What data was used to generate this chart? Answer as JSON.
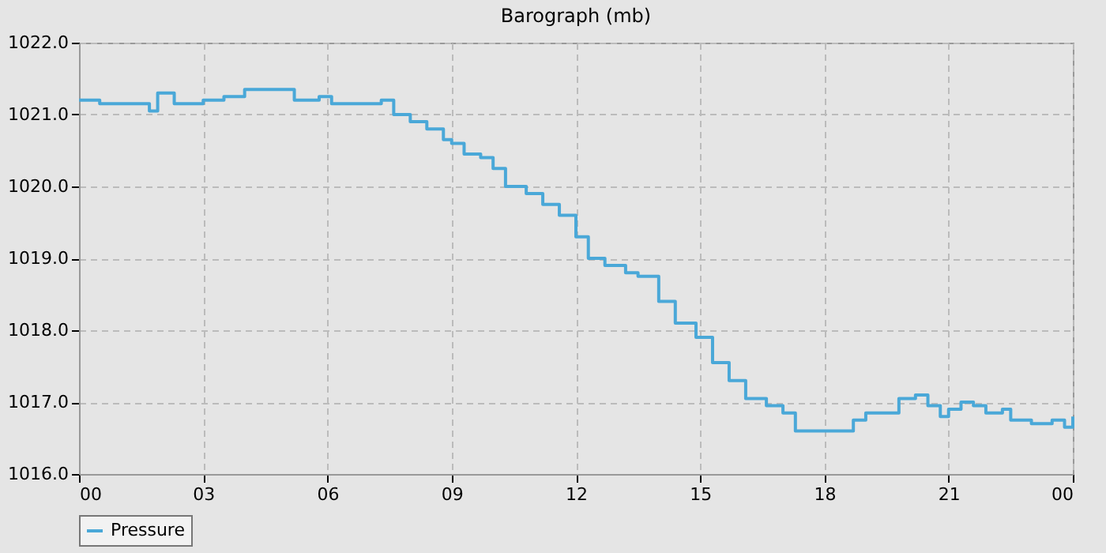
{
  "chart_data": {
    "type": "step",
    "title": "Barograph (mb)",
    "x": [
      0,
      0.5,
      1.5,
      1.7,
      1.9,
      2.3,
      3.0,
      3.5,
      4.0,
      4.5,
      5.0,
      5.2,
      5.8,
      6.1,
      7.0,
      7.3,
      7.6,
      8.0,
      8.4,
      8.8,
      9.0,
      9.3,
      9.7,
      10.0,
      10.3,
      10.8,
      11.2,
      11.6,
      12.0,
      12.3,
      12.7,
      13.2,
      13.5,
      14.0,
      14.4,
      14.9,
      15.3,
      15.7,
      16.1,
      16.6,
      17.0,
      17.3,
      17.8,
      18.4,
      18.7,
      19.0,
      19.5,
      19.8,
      20.2,
      20.5,
      20.8,
      21.0,
      21.3,
      21.6,
      21.9,
      22.3,
      22.5,
      23.0,
      23.5,
      23.8,
      24.0
    ],
    "series": [
      {
        "name": "Pressure",
        "color": "#4aa8d8",
        "values": [
          1021.2,
          1021.15,
          1021.15,
          1021.05,
          1021.3,
          1021.15,
          1021.2,
          1021.25,
          1021.35,
          1021.35,
          1021.35,
          1021.2,
          1021.25,
          1021.15,
          1021.15,
          1021.2,
          1021.0,
          1020.9,
          1020.8,
          1020.65,
          1020.6,
          1020.45,
          1020.4,
          1020.25,
          1020.0,
          1019.9,
          1019.75,
          1019.6,
          1019.3,
          1019.0,
          1018.9,
          1018.8,
          1018.75,
          1018.4,
          1018.1,
          1017.9,
          1017.55,
          1017.3,
          1017.05,
          1016.95,
          1016.85,
          1016.6,
          1016.6,
          1016.6,
          1016.75,
          1016.85,
          1016.85,
          1017.05,
          1017.1,
          1016.95,
          1016.8,
          1016.9,
          1017.0,
          1016.95,
          1016.85,
          1016.9,
          1016.75,
          1016.7,
          1016.75,
          1016.65,
          1016.8
        ]
      }
    ],
    "xlim": [
      0,
      24
    ],
    "xticks": [
      {
        "value": 0,
        "label": "00"
      },
      {
        "value": 3,
        "label": "03"
      },
      {
        "value": 6,
        "label": "06"
      },
      {
        "value": 9,
        "label": "09"
      },
      {
        "value": 12,
        "label": "12"
      },
      {
        "value": 15,
        "label": "15"
      },
      {
        "value": 18,
        "label": "18"
      },
      {
        "value": 21,
        "label": "21"
      },
      {
        "value": 24,
        "label": "00"
      }
    ],
    "ylim": [
      1016,
      1022
    ],
    "yticks": [
      {
        "value": 1016,
        "label": "1016.0"
      },
      {
        "value": 1017,
        "label": "1017.0"
      },
      {
        "value": 1018,
        "label": "1018.0"
      },
      {
        "value": 1019,
        "label": "1019.0"
      },
      {
        "value": 1020,
        "label": "1020.0"
      },
      {
        "value": 1021,
        "label": "1021.0"
      },
      {
        "value": 1022,
        "label": "1022.0"
      }
    ],
    "grid": true,
    "legend": "bottom",
    "line_style": "solid"
  }
}
